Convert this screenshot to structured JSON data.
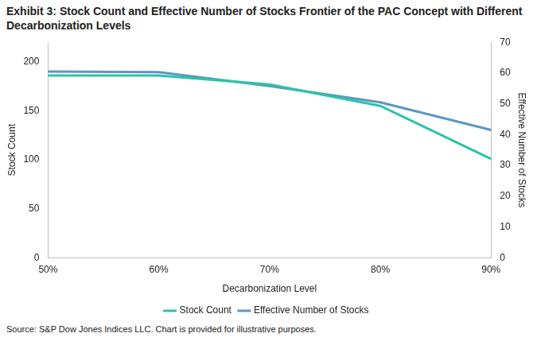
{
  "chart_data": {
    "type": "line",
    "title": "Exhibit 3: Stock Count and Effective Number of Stocks Frontier of the PAC Concept with Different Decarbonization Levels",
    "x_label": "Decarbonization Level",
    "y_label": "Stock Count",
    "y2_label": "Effective Number of Stocks",
    "source": "Source: S&P Dow Jones Indices LLC. Chart is provided for illustrative purposes.",
    "categories": [
      "50%",
      "60%",
      "70%",
      "80%",
      "90%"
    ],
    "series": [
      {
        "name": "Stock Count",
        "color": "#2BC4A6",
        "values": [
          186,
          186,
          177,
          155,
          101
        ]
      },
      {
        "name": "Effective Number of Stocks",
        "color": "#5A97C4",
        "axis": "y2",
        "values": [
          60.5,
          60.3,
          55.8,
          50.5,
          41.5
        ]
      }
    ],
    "ylim": [
      0,
      220
    ],
    "yticks": [
      0,
      50,
      100,
      150,
      200
    ],
    "y2lim": [
      0,
      70
    ],
    "y2ticks": [
      0,
      10,
      20,
      30,
      40,
      50,
      60,
      70
    ],
    "grid": false,
    "legend": "bottom"
  }
}
